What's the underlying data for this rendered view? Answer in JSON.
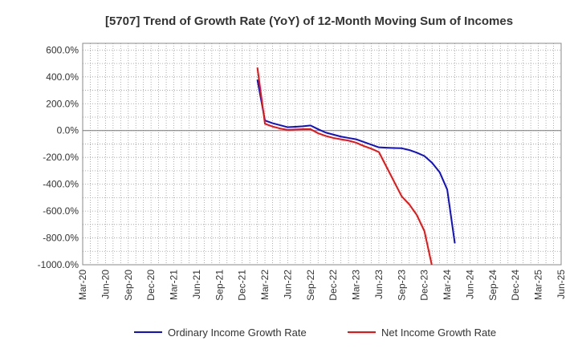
{
  "chart_data": {
    "type": "line",
    "title": "[5707]  Trend of Growth Rate (YoY) of 12-Month Moving Sum of Incomes",
    "xlabel": "",
    "ylabel": "",
    "x_ticks": [
      "Mar-20",
      "Jun-20",
      "Sep-20",
      "Dec-20",
      "Mar-21",
      "Jun-21",
      "Sep-21",
      "Dec-21",
      "Mar-22",
      "Jun-22",
      "Sep-22",
      "Dec-22",
      "Mar-23",
      "Jun-23",
      "Sep-23",
      "Dec-23",
      "Mar-24",
      "Jun-24",
      "Sep-24",
      "Dec-24",
      "Mar-25",
      "Jun-25"
    ],
    "y_ticks": [
      "600.0%",
      "400.0%",
      "200.0%",
      "0.0%",
      "-200.0%",
      "-400.0%",
      "-600.0%",
      "-800.0%",
      "-1000.0%"
    ],
    "y_tick_values": [
      600,
      400,
      200,
      0,
      -200,
      -400,
      -600,
      -800,
      -1000
    ],
    "ylim": [
      -1000,
      650
    ],
    "grid": true,
    "legend_position": "bottom",
    "series": [
      {
        "name": "Ordinary Income Growth Rate",
        "color": "#1010cc",
        "points": [
          [
            "Feb-22",
            380
          ],
          [
            "Mar-22",
            75
          ],
          [
            "Apr-22",
            55
          ],
          [
            "May-22",
            40
          ],
          [
            "Jun-22",
            25
          ],
          [
            "Jul-22",
            28
          ],
          [
            "Aug-22",
            32
          ],
          [
            "Sep-22",
            38
          ],
          [
            "Oct-22",
            10
          ],
          [
            "Nov-22",
            -15
          ],
          [
            "Dec-22",
            -30
          ],
          [
            "Jan-23",
            -45
          ],
          [
            "Feb-23",
            -55
          ],
          [
            "Mar-23",
            -65
          ],
          [
            "Apr-23",
            -85
          ],
          [
            "May-23",
            -105
          ],
          [
            "Jun-23",
            -125
          ],
          [
            "Jul-23",
            -128
          ],
          [
            "Aug-23",
            -130
          ],
          [
            "Sep-23",
            -132
          ],
          [
            "Oct-23",
            -145
          ],
          [
            "Nov-23",
            -165
          ],
          [
            "Dec-23",
            -190
          ],
          [
            "Jan-24",
            -240
          ],
          [
            "Feb-24",
            -310
          ],
          [
            "Mar-24",
            -440
          ],
          [
            "Apr-24",
            -840
          ]
        ]
      },
      {
        "name": "Net Income Growth Rate",
        "color": "#ee1111",
        "points": [
          [
            "Feb-22",
            470
          ],
          [
            "Mar-22",
            50
          ],
          [
            "Apr-22",
            30
          ],
          [
            "May-22",
            15
          ],
          [
            "Jun-22",
            5
          ],
          [
            "Jul-22",
            8
          ],
          [
            "Aug-22",
            10
          ],
          [
            "Sep-22",
            10
          ],
          [
            "Oct-22",
            -20
          ],
          [
            "Nov-22",
            -40
          ],
          [
            "Dec-22",
            -55
          ],
          [
            "Jan-23",
            -65
          ],
          [
            "Feb-23",
            -75
          ],
          [
            "Mar-23",
            -90
          ],
          [
            "Apr-23",
            -115
          ],
          [
            "May-23",
            -135
          ],
          [
            "Jun-23",
            -160
          ],
          [
            "Jul-23",
            -270
          ],
          [
            "Aug-23",
            -380
          ],
          [
            "Sep-23",
            -490
          ],
          [
            "Oct-23",
            -550
          ],
          [
            "Nov-23",
            -630
          ],
          [
            "Dec-23",
            -750
          ],
          [
            "Jan-24",
            -1010
          ]
        ]
      }
    ]
  }
}
